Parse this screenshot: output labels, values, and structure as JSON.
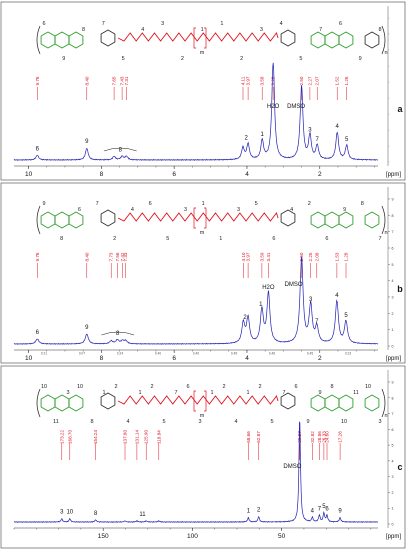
{
  "colors": {
    "spectrum": "#1f1fb4",
    "peak_labels": "#e0141e",
    "structure_green": "#2e9e2e",
    "structure_red": "#e0141e",
    "structure_black": "#333333"
  },
  "chart_data": [
    {
      "type": "line",
      "panel_label": "a",
      "xlabel": "[ppm]",
      "xlim": [
        10.4,
        0.4
      ],
      "x_reversed": true,
      "x_ticks": [
        10,
        8,
        6,
        4,
        2
      ],
      "ylabel": "",
      "y_ticks": [],
      "integral_ticks": [],
      "structure_numbers": [
        "6",
        "9",
        "8",
        "7",
        "5",
        "4",
        "3",
        "2",
        "1",
        "1",
        "2",
        "3",
        "4",
        "5",
        "7",
        "6",
        "9",
        "8",
        "m",
        "n"
      ],
      "peak_labels": [
        {
          "ppm": 9.76,
          "text": "9.76"
        },
        {
          "ppm": 8.4,
          "text": "8.40"
        },
        {
          "ppm": 7.65,
          "text": "7.65"
        },
        {
          "ppm": 7.43,
          "text": "7.43"
        },
        {
          "ppm": 7.31,
          "text": "7.31"
        },
        {
          "ppm": 4.11,
          "text": "4.11"
        },
        {
          "ppm": 3.97,
          "text": "3.97"
        },
        {
          "ppm": 3.58,
          "text": "3.58"
        },
        {
          "ppm": 3.28,
          "text": "3.28"
        },
        {
          "ppm": 2.5,
          "text": "2.50"
        },
        {
          "ppm": 2.27,
          "text": "2.27"
        },
        {
          "ppm": 2.07,
          "text": "2.07"
        },
        {
          "ppm": 1.52,
          "text": "1.52"
        },
        {
          "ppm": 1.26,
          "text": "1.26"
        }
      ],
      "peaks": [
        {
          "ppm": 9.76,
          "height": 0.04
        },
        {
          "ppm": 8.4,
          "height": 0.1
        },
        {
          "ppm": 7.65,
          "height": 0.03
        },
        {
          "ppm": 7.43,
          "height": 0.03
        },
        {
          "ppm": 7.31,
          "height": 0.03
        },
        {
          "ppm": 4.11,
          "height": 0.1
        },
        {
          "ppm": 3.97,
          "height": 0.13
        },
        {
          "ppm": 3.58,
          "height": 0.16
        },
        {
          "ppm": 3.28,
          "height": 0.82
        },
        {
          "ppm": 2.5,
          "height": 0.62
        },
        {
          "ppm": 2.27,
          "height": 0.2
        },
        {
          "ppm": 2.07,
          "height": 0.12
        },
        {
          "ppm": 1.52,
          "height": 0.23
        },
        {
          "ppm": 1.26,
          "height": 0.12
        }
      ],
      "annotations": [
        {
          "ppm": 9.76,
          "text": "6"
        },
        {
          "ppm": 8.4,
          "text": "9"
        },
        {
          "ppm": 7.48,
          "text": "8"
        },
        {
          "ppm": 4.02,
          "text": "2"
        },
        {
          "ppm": 3.58,
          "text": "1"
        },
        {
          "ppm": 3.28,
          "text": "H2O"
        },
        {
          "ppm": 2.65,
          "text": "DMSO"
        },
        {
          "ppm": 2.27,
          "text": "3"
        },
        {
          "ppm": 2.07,
          "text": "7"
        },
        {
          "ppm": 1.52,
          "text": "4"
        },
        {
          "ppm": 1.26,
          "text": "5"
        }
      ],
      "linewidth_ppm": 0.045
    },
    {
      "type": "line",
      "panel_label": "b",
      "xlabel": "[ppm]",
      "xlim": [
        10.4,
        0.4
      ],
      "x_reversed": true,
      "x_ticks": [
        10,
        8,
        6,
        4,
        2
      ],
      "ylabel": "",
      "y_ticks": [
        "0",
        "1",
        "2",
        "3",
        "4",
        "5",
        "6",
        "7",
        "8",
        "9"
      ],
      "integral_ticks": [
        "0.21",
        "0.07",
        "0.24",
        "0.40",
        "0.40",
        "0.45",
        "0.46",
        "0.45",
        "0.23"
      ],
      "structure_numbers": [
        "9",
        "8",
        "6",
        "7",
        "2",
        "4",
        "6",
        "5",
        "3",
        "1",
        "1",
        "3",
        "5",
        "6",
        "4",
        "2",
        "6",
        "9",
        "8",
        "7",
        "m",
        "n"
      ],
      "peak_labels": [
        {
          "ppm": 9.76,
          "text": "9.76"
        },
        {
          "ppm": 8.4,
          "text": "8.40"
        },
        {
          "ppm": 7.73,
          "text": "7.73"
        },
        {
          "ppm": 7.56,
          "text": "7.56"
        },
        {
          "ppm": 7.42,
          "text": "7.42"
        },
        {
          "ppm": 7.33,
          "text": "7.33"
        },
        {
          "ppm": 4.1,
          "text": "4.10"
        },
        {
          "ppm": 3.97,
          "text": "3.97"
        },
        {
          "ppm": 3.59,
          "text": "3.59"
        },
        {
          "ppm": 3.41,
          "text": "3.41"
        },
        {
          "ppm": 2.5,
          "text": "2.50"
        },
        {
          "ppm": 2.25,
          "text": "2.25"
        },
        {
          "ppm": 2.08,
          "text": "2.08"
        },
        {
          "ppm": 1.53,
          "text": "1.53"
        },
        {
          "ppm": 1.28,
          "text": "1.28"
        }
      ],
      "peaks": [
        {
          "ppm": 9.76,
          "height": 0.05
        },
        {
          "ppm": 8.4,
          "height": 0.1
        },
        {
          "ppm": 7.73,
          "height": 0.03
        },
        {
          "ppm": 7.56,
          "height": 0.04
        },
        {
          "ppm": 7.42,
          "height": 0.03
        },
        {
          "ppm": 7.33,
          "height": 0.03
        },
        {
          "ppm": 4.1,
          "height": 0.2
        },
        {
          "ppm": 3.97,
          "height": 0.25
        },
        {
          "ppm": 3.59,
          "height": 0.33
        },
        {
          "ppm": 3.41,
          "height": 0.5
        },
        {
          "ppm": 2.5,
          "height": 0.85
        },
        {
          "ppm": 2.25,
          "height": 0.38
        },
        {
          "ppm": 2.08,
          "height": 0.16
        },
        {
          "ppm": 1.53,
          "height": 0.42
        },
        {
          "ppm": 1.28,
          "height": 0.22
        }
      ],
      "annotations": [
        {
          "ppm": 9.76,
          "text": "6"
        },
        {
          "ppm": 8.4,
          "text": "9"
        },
        {
          "ppm": 7.55,
          "text": "8"
        },
        {
          "ppm": 4.05,
          "text": "2"
        },
        {
          "ppm": 3.62,
          "text": "1"
        },
        {
          "ppm": 3.41,
          "text": "H2O"
        },
        {
          "ppm": 2.72,
          "text": "DMSO"
        },
        {
          "ppm": 2.25,
          "text": "3"
        },
        {
          "ppm": 2.08,
          "text": "7"
        },
        {
          "ppm": 1.53,
          "text": "4"
        },
        {
          "ppm": 1.28,
          "text": "5"
        }
      ],
      "linewidth_ppm": 0.05
    },
    {
      "type": "line",
      "panel_label": "c",
      "xlabel": "[ppm]",
      "xlim": [
        200,
        -4
      ],
      "x_reversed": true,
      "x_ticks": [
        150,
        100,
        50
      ],
      "ylabel": "",
      "y_ticks": [
        "0",
        "1",
        "2",
        "3",
        "4",
        "5",
        "6",
        "7",
        "8",
        "9"
      ],
      "integral_ticks": [],
      "structure_numbers": [
        "10",
        "11",
        "3",
        "10",
        "8",
        "1",
        "2",
        "4",
        "1",
        "2",
        "5",
        "7",
        "6",
        "3",
        "1",
        "2",
        "4",
        "1",
        "2",
        "5",
        "7",
        "6",
        "9",
        "9",
        "8",
        "10",
        "11",
        "10",
        "3",
        "m",
        "n"
      ],
      "peak_labels": [
        {
          "ppm": 173.22,
          "text": "173.22"
        },
        {
          "ppm": 168.7,
          "text": "168.70"
        },
        {
          "ppm": 154.24,
          "text": "154.24"
        },
        {
          "ppm": 137.8,
          "text": "137.80"
        },
        {
          "ppm": 131.14,
          "text": "131.14"
        },
        {
          "ppm": 125.9,
          "text": "125.90"
        },
        {
          "ppm": 118.84,
          "text": "118.84"
        },
        {
          "ppm": 68.66,
          "text": "68.66"
        },
        {
          "ppm": 62.87,
          "text": "62.87"
        },
        {
          "ppm": 39.87,
          "text": "39.87"
        },
        {
          "ppm": 32.82,
          "text": "32.82"
        },
        {
          "ppm": 28.86,
          "text": "28.86"
        },
        {
          "ppm": 26.33,
          "text": "26.33"
        },
        {
          "ppm": 24.6,
          "text": "24.60"
        },
        {
          "ppm": 17.26,
          "text": "17.26"
        }
      ],
      "peaks": [
        {
          "ppm": 173.22,
          "height": 0.03
        },
        {
          "ppm": 168.7,
          "height": 0.03
        },
        {
          "ppm": 154.24,
          "height": 0.02
        },
        {
          "ppm": 137.8,
          "height": 0.01
        },
        {
          "ppm": 131.14,
          "height": 0.01
        },
        {
          "ppm": 125.9,
          "height": 0.01
        },
        {
          "ppm": 118.84,
          "height": 0.01
        },
        {
          "ppm": 68.66,
          "height": 0.04
        },
        {
          "ppm": 62.87,
          "height": 0.05
        },
        {
          "ppm": 39.87,
          "height": 0.95
        },
        {
          "ppm": 32.82,
          "height": 0.04
        },
        {
          "ppm": 28.86,
          "height": 0.06
        },
        {
          "ppm": 26.33,
          "height": 0.08
        },
        {
          "ppm": 24.6,
          "height": 0.06
        },
        {
          "ppm": 17.26,
          "height": 0.04
        }
      ],
      "annotations": [
        {
          "ppm": 173.22,
          "text": "3"
        },
        {
          "ppm": 168.7,
          "text": "10"
        },
        {
          "ppm": 154.24,
          "text": "8"
        },
        {
          "ppm": 128.0,
          "text": "11"
        },
        {
          "ppm": 68.66,
          "text": "1"
        },
        {
          "ppm": 62.87,
          "text": "2"
        },
        {
          "ppm": 44.0,
          "text": "DMSO"
        },
        {
          "ppm": 32.82,
          "text": "4"
        },
        {
          "ppm": 28.86,
          "text": "7"
        },
        {
          "ppm": 26.33,
          "text": "5"
        },
        {
          "ppm": 24.6,
          "text": "6"
        },
        {
          "ppm": 17.26,
          "text": "9"
        }
      ],
      "linewidth_ppm": 0.5
    }
  ]
}
